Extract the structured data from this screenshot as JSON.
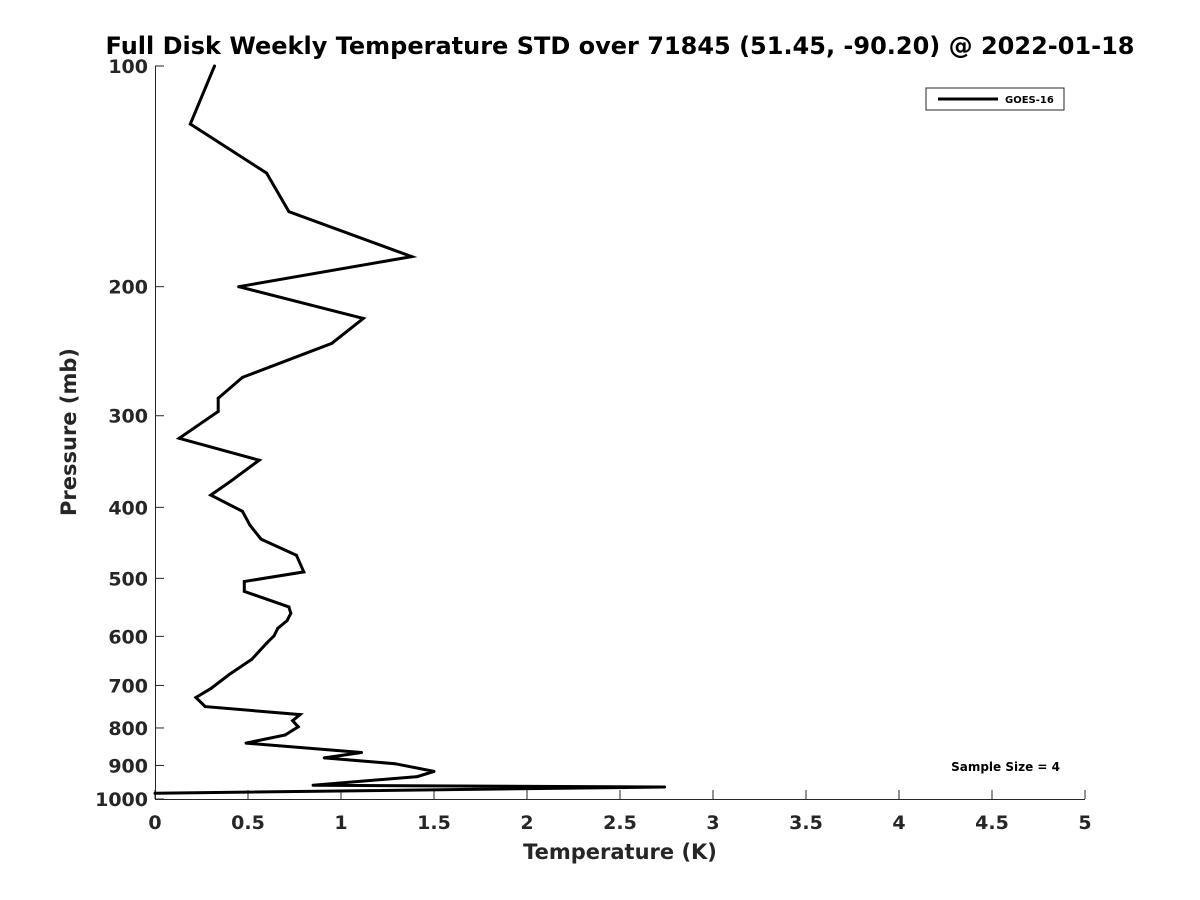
{
  "chart_data": {
    "type": "line",
    "title": "Full Disk Weekly Temperature STD over 71845 (51.45, -90.20) @ 2022-01-18",
    "xlabel": "Temperature (K)",
    "ylabel": "Pressure (mb)",
    "xlim": [
      0,
      5
    ],
    "ylim": [
      100,
      1000
    ],
    "y_scale": "log",
    "y_reversed": true,
    "grid": false,
    "legend_position": "top-right",
    "xticks": [
      "0",
      "0.5",
      "1",
      "1.5",
      "2",
      "2.5",
      "3",
      "3.5",
      "4",
      "4.5",
      "5"
    ],
    "yticks": [
      "100",
      "200",
      "300",
      "400",
      "500",
      "600",
      "700",
      "800",
      "900",
      "1000"
    ],
    "series": [
      {
        "name": "GOES-16",
        "color": "#000000",
        "x": [
          0.32,
          0.19,
          0.6,
          0.72,
          1.38,
          0.45,
          1.12,
          0.95,
          0.47,
          0.34,
          0.34,
          0.13,
          0.56,
          0.41,
          0.3,
          0.47,
          0.51,
          0.57,
          0.76,
          0.8,
          0.48,
          0.48,
          0.72,
          0.73,
          0.71,
          0.66,
          0.64,
          0.6,
          0.52,
          0.4,
          0.3,
          0.22,
          0.27,
          0.78,
          0.74,
          0.77,
          0.7,
          0.49,
          1.11,
          0.91,
          1.29,
          1.5,
          1.41,
          0.85,
          2.74,
          0.0
        ],
        "y": [
          100,
          120,
          140,
          158,
          182,
          200,
          221,
          239,
          266,
          284,
          296,
          322,
          345,
          368,
          385,
          405,
          423,
          442,
          465,
          490,
          505,
          521,
          547,
          558,
          571,
          585,
          599,
          613,
          645,
          676,
          707,
          727,
          748,
          767,
          782,
          797,
          818,
          839,
          864,
          879,
          895,
          917,
          932,
          958,
          963,
          982
        ]
      }
    ],
    "annotations": [
      "Sample Size = 4"
    ]
  }
}
